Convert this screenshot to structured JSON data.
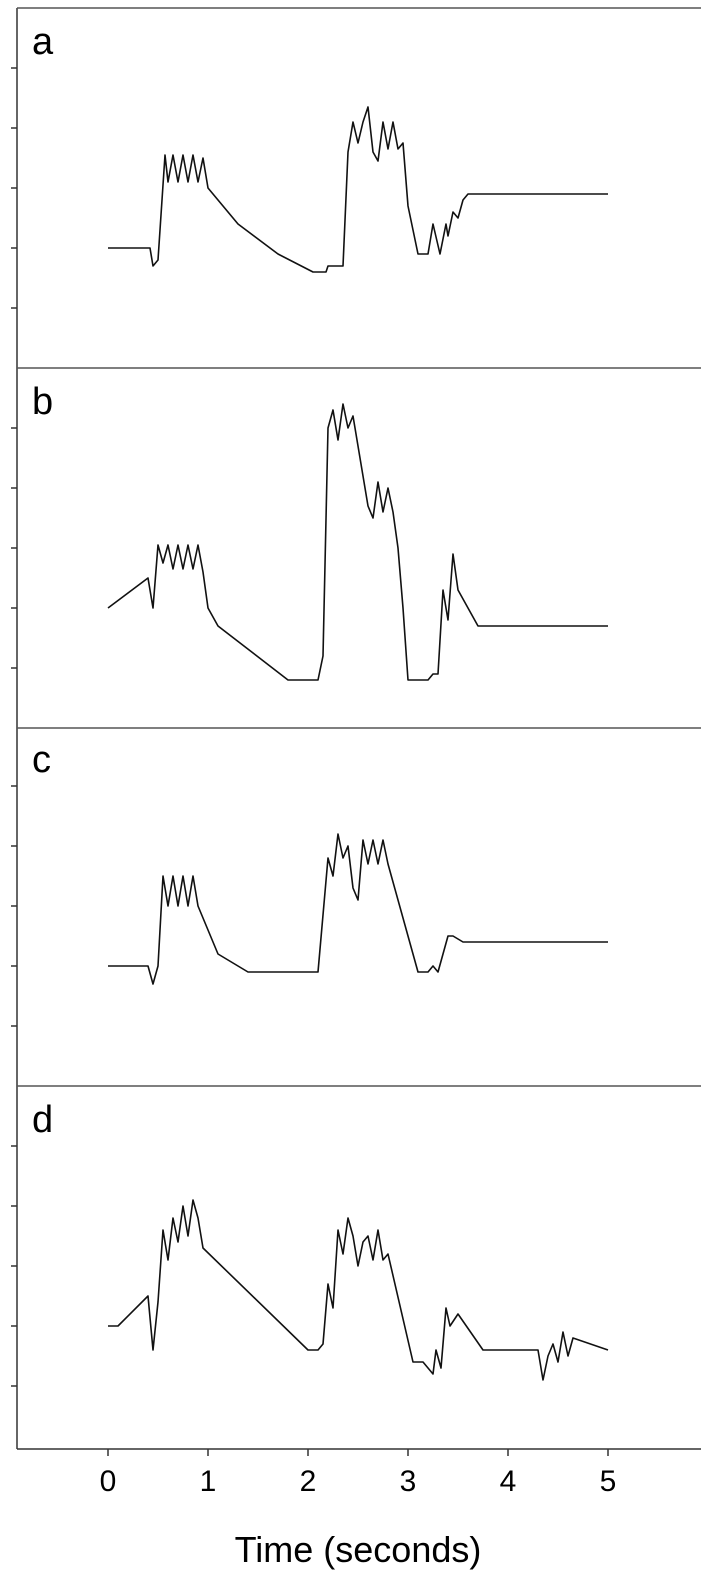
{
  "chart_data": {
    "type": "line",
    "xlabel": "Time (seconds)",
    "xlim": [
      -0.9,
      5.9
    ],
    "x_ticks": [
      0,
      1,
      2,
      3,
      4,
      5
    ],
    "grid": false,
    "legend": "none",
    "panels": [
      {
        "label": "a",
        "ylim": [
          0,
          6
        ],
        "y_ticks": [
          1,
          2,
          3,
          4,
          5
        ],
        "x": [
          0,
          0.42,
          0.45,
          0.5,
          0.57,
          0.6,
          0.65,
          0.7,
          0.75,
          0.8,
          0.85,
          0.9,
          0.95,
          1.0,
          1.3,
          1.7,
          2.05,
          2.18,
          2.2,
          2.35,
          2.4,
          2.45,
          2.5,
          2.55,
          2.6,
          2.65,
          2.7,
          2.75,
          2.8,
          2.85,
          2.9,
          2.95,
          3.0,
          3.1,
          3.2,
          3.25,
          3.32,
          3.38,
          3.4,
          3.45,
          3.5,
          3.55,
          3.6,
          3.7,
          5.0
        ],
        "y": [
          2.0,
          2.0,
          1.7,
          1.8,
          3.55,
          3.1,
          3.55,
          3.1,
          3.55,
          3.1,
          3.55,
          3.1,
          3.5,
          3.0,
          2.4,
          1.9,
          1.6,
          1.6,
          1.7,
          1.7,
          3.6,
          4.1,
          3.75,
          4.1,
          4.35,
          3.6,
          3.45,
          4.1,
          3.65,
          4.1,
          3.65,
          3.75,
          2.7,
          1.9,
          1.9,
          2.4,
          1.9,
          2.4,
          2.2,
          2.6,
          2.5,
          2.8,
          2.9,
          2.9,
          2.9
        ]
      },
      {
        "label": "b",
        "ylim": [
          0,
          6
        ],
        "y_ticks": [
          1,
          2,
          3,
          4,
          5
        ],
        "x": [
          0,
          0.4,
          0.45,
          0.5,
          0.55,
          0.6,
          0.65,
          0.7,
          0.75,
          0.8,
          0.85,
          0.9,
          0.95,
          1.0,
          1.1,
          1.8,
          2.1,
          2.15,
          2.2,
          2.25,
          2.3,
          2.35,
          2.4,
          2.45,
          2.5,
          2.6,
          2.65,
          2.7,
          2.75,
          2.8,
          2.85,
          2.9,
          2.95,
          3.0,
          3.2,
          3.25,
          3.3,
          3.35,
          3.4,
          3.45,
          3.5,
          3.7,
          5.0
        ],
        "y": [
          2.0,
          2.5,
          2.0,
          3.05,
          2.75,
          3.05,
          2.65,
          3.05,
          2.65,
          3.05,
          2.65,
          3.05,
          2.6,
          2.0,
          1.7,
          0.8,
          0.8,
          1.2,
          5.0,
          5.3,
          4.8,
          5.4,
          5.0,
          5.2,
          4.7,
          3.7,
          3.5,
          4.1,
          3.6,
          4.0,
          3.6,
          3.0,
          2.0,
          0.8,
          0.8,
          0.9,
          0.9,
          2.3,
          1.8,
          2.9,
          2.3,
          1.7,
          1.7
        ]
      },
      {
        "label": "c",
        "ylim": [
          0,
          6
        ],
        "y_ticks": [
          1,
          2,
          3,
          4,
          5
        ],
        "x": [
          0,
          0.4,
          0.45,
          0.5,
          0.55,
          0.6,
          0.65,
          0.7,
          0.75,
          0.8,
          0.85,
          0.9,
          1.1,
          1.4,
          2.1,
          2.2,
          2.25,
          2.3,
          2.35,
          2.4,
          2.45,
          2.5,
          2.55,
          2.6,
          2.65,
          2.7,
          2.75,
          2.8,
          3.1,
          3.2,
          3.25,
          3.3,
          3.35,
          3.4,
          3.45,
          3.55,
          5.0
        ],
        "y": [
          2.0,
          2.0,
          1.7,
          2.0,
          3.5,
          3.0,
          3.5,
          3.0,
          3.5,
          3.0,
          3.5,
          3.0,
          2.2,
          1.9,
          1.9,
          3.8,
          3.5,
          4.2,
          3.8,
          4.0,
          3.3,
          3.1,
          4.1,
          3.7,
          4.1,
          3.7,
          4.1,
          3.7,
          1.9,
          1.9,
          2.0,
          1.9,
          2.2,
          2.5,
          2.5,
          2.4,
          2.4
        ]
      },
      {
        "label": "d",
        "ylim": [
          0,
          6
        ],
        "y_ticks": [
          1,
          2,
          3,
          4,
          5
        ],
        "x": [
          0,
          0.1,
          0.4,
          0.45,
          0.5,
          0.55,
          0.6,
          0.65,
          0.7,
          0.75,
          0.8,
          0.85,
          0.9,
          0.95,
          2.0,
          2.1,
          2.15,
          2.2,
          2.25,
          2.3,
          2.35,
          2.4,
          2.45,
          2.5,
          2.55,
          2.6,
          2.65,
          2.7,
          2.75,
          2.8,
          3.05,
          3.15,
          3.25,
          3.28,
          3.33,
          3.38,
          3.42,
          3.5,
          3.75,
          4.3,
          4.35,
          4.4,
          4.45,
          4.5,
          4.55,
          4.6,
          4.65,
          5.0
        ],
        "y": [
          2.0,
          2.0,
          2.5,
          1.6,
          2.4,
          3.6,
          3.1,
          3.8,
          3.4,
          4.0,
          3.5,
          4.1,
          3.8,
          3.3,
          1.6,
          1.6,
          1.7,
          2.7,
          2.3,
          3.6,
          3.2,
          3.8,
          3.5,
          3.0,
          3.4,
          3.5,
          3.1,
          3.6,
          3.1,
          3.2,
          1.4,
          1.4,
          1.2,
          1.6,
          1.3,
          2.3,
          2.0,
          2.2,
          1.6,
          1.6,
          1.1,
          1.5,
          1.7,
          1.4,
          1.9,
          1.5,
          1.8,
          1.6
        ]
      }
    ]
  }
}
